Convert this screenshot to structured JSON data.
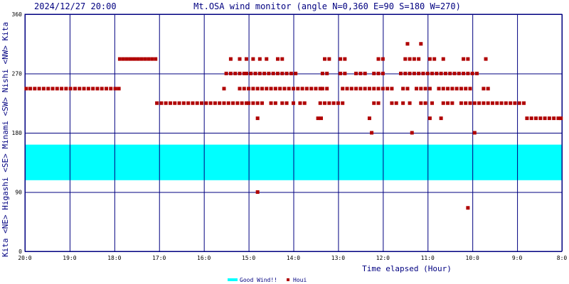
{
  "header": {
    "timestamp": "2024/12/27 20:00",
    "title": "Mt.OSA wind monitor (angle N=0,360 E=90 S=180 W=270)"
  },
  "colors": {
    "grid": "#000080",
    "series": "#b00000",
    "band": "#00ffff"
  },
  "chart_data": {
    "type": "scatter",
    "title": "Mt.OSA wind monitor (angle N=0,360 E=90 S=180 W=270)",
    "xlabel": "Time elapsed (Hour)",
    "ylabel": "",
    "xlim": [
      20,
      8
    ],
    "ylim": [
      0,
      360
    ],
    "x_ticks": [
      "20:0",
      "19:0",
      "18:0",
      "17:0",
      "16:0",
      "15:0",
      "14:0",
      "13:0",
      "12:0",
      "11:0",
      "10:0",
      "9:0",
      "8:0"
    ],
    "y_ticks": [
      "0",
      "90",
      "180",
      "270",
      "360"
    ],
    "y_direction_labels": [
      "Kita",
      "<NE>",
      "Higashi",
      "<SE>",
      "Minami",
      "<SW>",
      "Nishi",
      "<NW>",
      "Kita"
    ],
    "grid": true,
    "legend": [
      "Good Wind!!",
      "Houi"
    ],
    "good_wind_band": {
      "name": "Good Wind!!",
      "from": 108,
      "to": 162
    },
    "series": [
      {
        "name": "Houi",
        "points": [
          [
            19.97,
            247
          ],
          [
            19.88,
            247
          ],
          [
            19.78,
            247
          ],
          [
            19.68,
            247
          ],
          [
            19.58,
            247
          ],
          [
            19.48,
            247
          ],
          [
            19.38,
            247
          ],
          [
            19.28,
            247
          ],
          [
            19.18,
            247
          ],
          [
            19.08,
            247
          ],
          [
            18.98,
            247
          ],
          [
            18.88,
            247
          ],
          [
            18.78,
            247
          ],
          [
            18.68,
            247
          ],
          [
            18.58,
            247
          ],
          [
            18.48,
            247
          ],
          [
            18.38,
            247
          ],
          [
            18.28,
            247
          ],
          [
            18.18,
            247
          ],
          [
            18.08,
            247
          ],
          [
            17.98,
            247
          ],
          [
            17.9,
            247
          ],
          [
            17.88,
            292
          ],
          [
            17.8,
            292
          ],
          [
            17.72,
            292
          ],
          [
            17.64,
            292
          ],
          [
            17.56,
            292
          ],
          [
            17.48,
            292
          ],
          [
            17.4,
            292
          ],
          [
            17.32,
            292
          ],
          [
            17.24,
            292
          ],
          [
            17.16,
            292
          ],
          [
            17.08,
            292
          ],
          [
            17.05,
            225
          ],
          [
            16.95,
            225
          ],
          [
            16.85,
            225
          ],
          [
            16.75,
            225
          ],
          [
            16.65,
            225
          ],
          [
            16.55,
            225
          ],
          [
            16.45,
            225
          ],
          [
            16.35,
            225
          ],
          [
            16.25,
            225
          ],
          [
            16.15,
            225
          ],
          [
            16.05,
            225
          ],
          [
            15.95,
            225
          ],
          [
            15.85,
            225
          ],
          [
            15.75,
            225
          ],
          [
            15.65,
            225
          ],
          [
            15.55,
            225
          ],
          [
            15.45,
            225
          ],
          [
            15.35,
            225
          ],
          [
            15.25,
            225
          ],
          [
            15.15,
            225
          ],
          [
            15.05,
            225
          ],
          [
            15.5,
            270
          ],
          [
            15.4,
            270
          ],
          [
            15.3,
            270
          ],
          [
            15.2,
            270
          ],
          [
            15.1,
            270
          ],
          [
            15.05,
            270
          ],
          [
            14.95,
            270
          ],
          [
            14.85,
            270
          ],
          [
            14.75,
            270
          ],
          [
            14.65,
            270
          ],
          [
            14.55,
            270
          ],
          [
            14.45,
            270
          ],
          [
            14.35,
            270
          ],
          [
            14.25,
            270
          ],
          [
            14.15,
            270
          ],
          [
            14.05,
            270
          ],
          [
            13.95,
            270
          ],
          [
            15.55,
            247
          ],
          [
            15.2,
            247
          ],
          [
            15.1,
            247
          ],
          [
            15.0,
            247
          ],
          [
            14.9,
            247
          ],
          [
            14.8,
            247
          ],
          [
            14.7,
            247
          ],
          [
            14.6,
            247
          ],
          [
            14.5,
            247
          ],
          [
            14.4,
            247
          ],
          [
            14.3,
            247
          ],
          [
            14.2,
            247
          ],
          [
            14.1,
            247
          ],
          [
            14.0,
            247
          ],
          [
            13.9,
            247
          ],
          [
            13.8,
            247
          ],
          [
            13.7,
            247
          ],
          [
            13.6,
            247
          ],
          [
            13.5,
            247
          ],
          [
            13.4,
            247
          ],
          [
            15.4,
            292
          ],
          [
            15.2,
            292
          ],
          [
            15.05,
            292
          ],
          [
            14.9,
            292
          ],
          [
            14.75,
            292
          ],
          [
            14.6,
            292
          ],
          [
            14.35,
            292
          ],
          [
            14.25,
            292
          ],
          [
            15.0,
            225
          ],
          [
            14.9,
            225
          ],
          [
            14.8,
            225
          ],
          [
            14.7,
            225
          ],
          [
            14.5,
            225
          ],
          [
            14.4,
            225
          ],
          [
            14.25,
            225
          ],
          [
            14.15,
            225
          ],
          [
            14.0,
            225
          ],
          [
            13.85,
            225
          ],
          [
            13.75,
            225
          ],
          [
            13.4,
            225
          ],
          [
            13.3,
            225
          ],
          [
            13.2,
            225
          ],
          [
            13.1,
            225
          ],
          [
            13.0,
            225
          ],
          [
            12.9,
            225
          ],
          [
            14.8,
            202
          ],
          [
            14.8,
            90
          ],
          [
            13.35,
            270
          ],
          [
            13.25,
            270
          ],
          [
            13.3,
            292
          ],
          [
            13.2,
            292
          ],
          [
            13.35,
            247
          ],
          [
            13.25,
            247
          ],
          [
            13.45,
            202
          ],
          [
            13.38,
            202
          ],
          [
            12.95,
            292
          ],
          [
            12.85,
            292
          ],
          [
            12.95,
            270
          ],
          [
            12.85,
            270
          ],
          [
            12.9,
            247
          ],
          [
            12.8,
            247
          ],
          [
            12.7,
            247
          ],
          [
            12.6,
            247
          ],
          [
            12.5,
            247
          ],
          [
            12.4,
            247
          ],
          [
            12.3,
            247
          ],
          [
            12.2,
            247
          ],
          [
            12.1,
            247
          ],
          [
            12.0,
            247
          ],
          [
            11.9,
            247
          ],
          [
            11.8,
            247
          ],
          [
            12.6,
            270
          ],
          [
            12.5,
            270
          ],
          [
            12.4,
            270
          ],
          [
            12.2,
            270
          ],
          [
            12.1,
            270
          ],
          [
            12.0,
            270
          ],
          [
            12.1,
            292
          ],
          [
            12.0,
            292
          ],
          [
            12.2,
            225
          ],
          [
            12.1,
            225
          ],
          [
            11.8,
            225
          ],
          [
            11.7,
            225
          ],
          [
            12.3,
            202
          ],
          [
            12.25,
            180
          ],
          [
            11.6,
            270
          ],
          [
            11.5,
            270
          ],
          [
            11.4,
            270
          ],
          [
            11.3,
            270
          ],
          [
            11.2,
            270
          ],
          [
            11.1,
            270
          ],
          [
            11.0,
            270
          ],
          [
            10.9,
            270
          ],
          [
            10.8,
            270
          ],
          [
            10.7,
            270
          ],
          [
            10.6,
            270
          ],
          [
            10.5,
            270
          ],
          [
            10.4,
            270
          ],
          [
            10.3,
            270
          ],
          [
            10.2,
            270
          ],
          [
            10.1,
            270
          ],
          [
            10.0,
            270
          ],
          [
            9.9,
            270
          ],
          [
            11.5,
            292
          ],
          [
            11.4,
            292
          ],
          [
            11.3,
            292
          ],
          [
            11.2,
            292
          ],
          [
            10.95,
            292
          ],
          [
            10.85,
            292
          ],
          [
            10.65,
            292
          ],
          [
            10.2,
            292
          ],
          [
            10.1,
            292
          ],
          [
            9.7,
            292
          ],
          [
            11.55,
            247
          ],
          [
            11.45,
            247
          ],
          [
            11.25,
            247
          ],
          [
            11.15,
            247
          ],
          [
            11.05,
            247
          ],
          [
            10.95,
            247
          ],
          [
            10.75,
            247
          ],
          [
            10.65,
            247
          ],
          [
            10.55,
            247
          ],
          [
            10.45,
            247
          ],
          [
            10.35,
            247
          ],
          [
            10.25,
            247
          ],
          [
            10.15,
            247
          ],
          [
            10.05,
            247
          ],
          [
            9.75,
            247
          ],
          [
            9.65,
            247
          ],
          [
            11.55,
            225
          ],
          [
            11.4,
            225
          ],
          [
            11.15,
            225
          ],
          [
            11.05,
            225
          ],
          [
            10.9,
            225
          ],
          [
            10.65,
            225
          ],
          [
            10.55,
            225
          ],
          [
            10.45,
            225
          ],
          [
            10.25,
            225
          ],
          [
            10.15,
            225
          ],
          [
            10.05,
            225
          ],
          [
            9.95,
            225
          ],
          [
            9.85,
            225
          ],
          [
            9.75,
            225
          ],
          [
            9.65,
            225
          ],
          [
            9.55,
            225
          ],
          [
            9.45,
            225
          ],
          [
            9.35,
            225
          ],
          [
            9.25,
            225
          ],
          [
            9.15,
            225
          ],
          [
            9.05,
            225
          ],
          [
            8.95,
            225
          ],
          [
            8.85,
            225
          ],
          [
            11.45,
            315
          ],
          [
            11.15,
            315
          ],
          [
            10.95,
            202
          ],
          [
            10.7,
            202
          ],
          [
            11.35,
            180
          ],
          [
            9.95,
            180
          ],
          [
            10.1,
            66
          ],
          [
            8.78,
            202
          ],
          [
            8.68,
            202
          ],
          [
            8.58,
            202
          ],
          [
            8.48,
            202
          ],
          [
            8.38,
            202
          ],
          [
            8.28,
            202
          ],
          [
            8.18,
            202
          ],
          [
            8.08,
            202
          ],
          [
            8.02,
            202
          ]
        ]
      }
    ]
  }
}
